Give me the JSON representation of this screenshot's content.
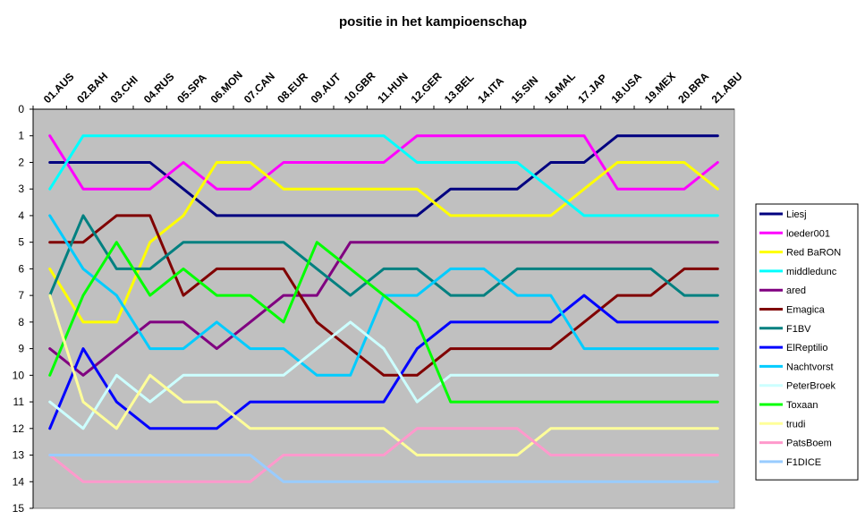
{
  "chart_data": {
    "type": "line",
    "title": "positie in het kampioenschap",
    "categories": [
      "01.AUS",
      "02.BAH",
      "03.CHI",
      "04.RUS",
      "05.SPA",
      "06.MON",
      "07.CAN",
      "08.EUR",
      "09.AUT",
      "10.GBR",
      "11.HUN",
      "12.GER",
      "13.BEL",
      "14.ITA",
      "15.SIN",
      "16.MAL",
      "17.JAP",
      "18.USA",
      "19.MEX",
      "20.BRA",
      "21.ABU"
    ],
    "yticks": [
      0,
      1,
      2,
      3,
      4,
      5,
      6,
      7,
      8,
      9,
      10,
      11,
      12,
      13,
      14,
      15
    ],
    "ylim": [
      0,
      15
    ],
    "y_inverted": true,
    "plot_background": "#c0c0c0",
    "legend_position": "right",
    "series": [
      {
        "name": "Liesj",
        "color": "#000080",
        "values": [
          2,
          2,
          2,
          2,
          3,
          4,
          4,
          4,
          4,
          4,
          4,
          4,
          3,
          3,
          3,
          2,
          2,
          1,
          1,
          1,
          1
        ]
      },
      {
        "name": "loeder001",
        "color": "#ff00ff",
        "values": [
          1,
          3,
          3,
          3,
          2,
          3,
          3,
          2,
          2,
          2,
          2,
          1,
          1,
          1,
          1,
          1,
          1,
          3,
          3,
          3,
          2
        ]
      },
      {
        "name": "Red BaRON",
        "color": "#ffff00",
        "values": [
          6,
          8,
          8,
          5,
          4,
          2,
          2,
          3,
          3,
          3,
          3,
          3,
          4,
          4,
          4,
          4,
          3,
          2,
          2,
          2,
          3
        ]
      },
      {
        "name": "middledunc",
        "color": "#00ffff",
        "values": [
          3,
          1,
          1,
          1,
          1,
          1,
          1,
          1,
          1,
          1,
          1,
          2,
          2,
          2,
          2,
          3,
          4,
          4,
          4,
          4,
          4
        ]
      },
      {
        "name": "ared",
        "color": "#800080",
        "values": [
          9,
          10,
          9,
          8,
          8,
          9,
          8,
          7,
          7,
          5,
          5,
          5,
          5,
          5,
          5,
          5,
          5,
          5,
          5,
          5,
          5
        ]
      },
      {
        "name": "Emagica",
        "color": "#800000",
        "values": [
          5,
          5,
          4,
          4,
          7,
          6,
          6,
          6,
          8,
          9,
          10,
          10,
          9,
          9,
          9,
          9,
          8,
          7,
          7,
          6,
          6
        ]
      },
      {
        "name": "F1BV",
        "color": "#008080",
        "values": [
          7,
          4,
          6,
          6,
          5,
          5,
          5,
          5,
          6,
          7,
          6,
          6,
          7,
          7,
          6,
          6,
          6,
          6,
          6,
          7,
          7
        ]
      },
      {
        "name": "ElReptilio",
        "color": "#0000ff",
        "values": [
          12,
          9,
          11,
          12,
          12,
          12,
          11,
          11,
          11,
          11,
          11,
          9,
          8,
          8,
          8,
          8,
          7,
          8,
          8,
          8,
          8
        ]
      },
      {
        "name": "Nachtvorst",
        "color": "#00ccff",
        "values": [
          4,
          6,
          7,
          9,
          9,
          8,
          9,
          9,
          10,
          10,
          7,
          7,
          6,
          6,
          7,
          7,
          9,
          9,
          9,
          9,
          9
        ]
      },
      {
        "name": "PeterBroek",
        "color": "#ccffff",
        "values": [
          11,
          12,
          10,
          11,
          10,
          10,
          10,
          10,
          9,
          8,
          9,
          11,
          10,
          10,
          10,
          10,
          10,
          10,
          10,
          10,
          10
        ]
      },
      {
        "name": "Toxaan",
        "color": "#00ff00",
        "values": [
          10,
          7,
          5,
          7,
          6,
          7,
          7,
          8,
          5,
          6,
          7,
          8,
          11,
          11,
          11,
          11,
          11,
          11,
          11,
          11,
          11
        ]
      },
      {
        "name": "trudi",
        "color": "#ffff99",
        "values": [
          7,
          11,
          12,
          10,
          11,
          11,
          12,
          12,
          12,
          12,
          12,
          13,
          13,
          13,
          13,
          12,
          12,
          12,
          12,
          12,
          12
        ]
      },
      {
        "name": "PatsBoem",
        "color": "#ff99cc",
        "values": [
          13,
          14,
          14,
          14,
          14,
          14,
          14,
          13,
          13,
          13,
          13,
          12,
          12,
          12,
          12,
          13,
          13,
          13,
          13,
          13,
          13
        ]
      },
      {
        "name": "F1DICE",
        "color": "#99ccff",
        "values": [
          13,
          13,
          13,
          13,
          13,
          13,
          13,
          14,
          14,
          14,
          14,
          14,
          14,
          14,
          14,
          14,
          14,
          14,
          14,
          14,
          14
        ]
      }
    ]
  }
}
